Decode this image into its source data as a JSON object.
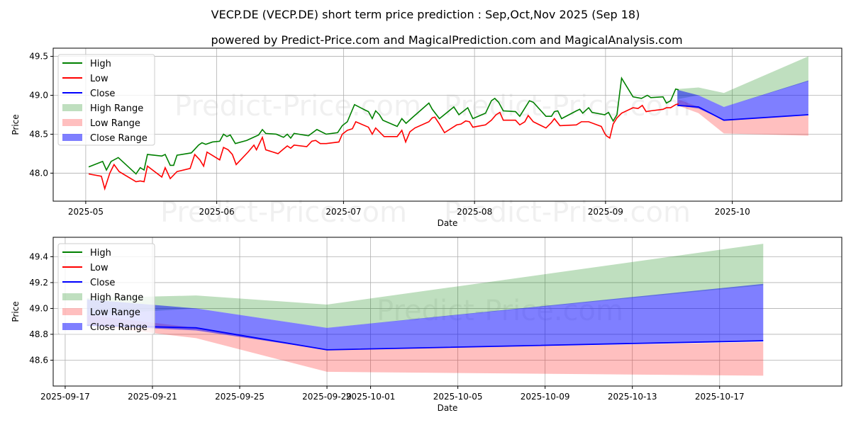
{
  "title": "VECP.DE (VECP.DE) short term price prediction : Sep,Oct,Nov 2025 (Sep 18)",
  "subtitle": "powered by Predict-Price.com and MagicalPrediction.com and MagicalAnalysis.com",
  "watermark": "Predict-Price.com",
  "colors": {
    "high": "#008000",
    "low": "#ff0000",
    "close": "#0000ff",
    "high_range": "#b2dab2",
    "low_range": "#ffb2b2",
    "close_range": "#7f7fff",
    "grid": "#b0b0b0"
  },
  "chart_data": [
    {
      "type": "line",
      "name": "history",
      "day_origin": "2025-05-01",
      "xlabel": "Date",
      "ylabel": "Price",
      "xlim_days": [
        -7.7,
        178.9
      ],
      "ylim": [
        47.64,
        49.605
      ],
      "grid": true,
      "legend": "top-left",
      "legend_entries": [
        "High",
        "Low",
        "Close",
        "High Range",
        "Low Range",
        "Close Range"
      ],
      "xticks": [
        {
          "day": 0,
          "label": "2025-05"
        },
        {
          "day": 31,
          "label": "2025-06"
        },
        {
          "day": 61,
          "label": "2025-07"
        },
        {
          "day": 92,
          "label": "2025-08"
        },
        {
          "day": 123,
          "label": "2025-09"
        },
        {
          "day": 153,
          "label": "2025-10"
        }
      ],
      "yticks": [
        {
          "v": 48.0,
          "label": "48.0"
        },
        {
          "v": 48.5,
          "label": "48.5"
        },
        {
          "v": 49.0,
          "label": "49.0"
        },
        {
          "v": 49.5,
          "label": "49.5"
        }
      ],
      "high": [
        [
          0.7,
          48.08
        ],
        [
          4.0,
          48.15
        ],
        [
          4.9,
          48.04
        ],
        [
          6.0,
          48.15
        ],
        [
          7.7,
          48.2
        ],
        [
          11.9,
          47.99
        ],
        [
          12.9,
          48.07
        ],
        [
          13.8,
          48.04
        ],
        [
          14.6,
          48.24
        ],
        [
          18.0,
          48.22
        ],
        [
          18.8,
          48.24
        ],
        [
          20.0,
          48.1
        ],
        [
          20.8,
          48.1
        ],
        [
          21.6,
          48.23
        ],
        [
          25.0,
          48.26
        ],
        [
          26.7,
          48.36
        ],
        [
          27.5,
          48.39
        ],
        [
          28.4,
          48.37
        ],
        [
          30.0,
          48.4
        ],
        [
          31.7,
          48.41
        ],
        [
          32.6,
          48.5
        ],
        [
          33.4,
          48.47
        ],
        [
          34.2,
          48.49
        ],
        [
          35.4,
          48.38
        ],
        [
          38.1,
          48.42
        ],
        [
          40.1,
          48.47
        ],
        [
          40.9,
          48.49
        ],
        [
          41.8,
          48.56
        ],
        [
          42.6,
          48.51
        ],
        [
          45.1,
          48.5
        ],
        [
          46.8,
          48.46
        ],
        [
          47.7,
          48.5
        ],
        [
          48.5,
          48.45
        ],
        [
          49.3,
          48.51
        ],
        [
          52.7,
          48.48
        ],
        [
          54.7,
          48.56
        ],
        [
          56.9,
          48.5
        ],
        [
          59.6,
          48.52
        ],
        [
          60.7,
          48.61
        ],
        [
          61.9,
          48.66
        ],
        [
          63.6,
          48.88
        ],
        [
          66.1,
          48.81
        ],
        [
          66.9,
          48.79
        ],
        [
          67.8,
          48.7
        ],
        [
          68.6,
          48.8
        ],
        [
          69.5,
          48.75
        ],
        [
          70.3,
          48.68
        ],
        [
          73.7,
          48.6
        ],
        [
          74.8,
          48.7
        ],
        [
          75.8,
          48.64
        ],
        [
          77.0,
          48.7
        ],
        [
          81.2,
          48.9
        ],
        [
          82.0,
          48.82
        ],
        [
          83.7,
          48.7
        ],
        [
          87.1,
          48.85
        ],
        [
          88.3,
          48.75
        ],
        [
          90.4,
          48.84
        ],
        [
          91.6,
          48.7
        ],
        [
          94.6,
          48.77
        ],
        [
          96.0,
          48.93
        ],
        [
          96.8,
          48.96
        ],
        [
          97.7,
          48.91
        ],
        [
          98.8,
          48.8
        ],
        [
          101.7,
          48.79
        ],
        [
          102.7,
          48.73
        ],
        [
          105.0,
          48.93
        ],
        [
          105.9,
          48.91
        ],
        [
          108.9,
          48.73
        ],
        [
          110.2,
          48.73
        ],
        [
          110.9,
          48.79
        ],
        [
          111.7,
          48.8
        ],
        [
          112.6,
          48.7
        ],
        [
          116.1,
          48.8
        ],
        [
          116.9,
          48.82
        ],
        [
          117.6,
          48.77
        ],
        [
          119.0,
          48.84
        ],
        [
          119.8,
          48.78
        ],
        [
          122.8,
          48.75
        ],
        [
          123.7,
          48.78
        ],
        [
          124.8,
          48.67
        ],
        [
          125.7,
          48.75
        ],
        [
          126.8,
          49.22
        ],
        [
          129.5,
          48.98
        ],
        [
          131.5,
          48.96
        ],
        [
          132.9,
          49.0
        ],
        [
          133.7,
          48.97
        ],
        [
          136.6,
          48.98
        ],
        [
          137.4,
          48.9
        ],
        [
          138.4,
          48.93
        ],
        [
          139.6,
          49.08
        ],
        [
          140.3,
          49.07
        ]
      ],
      "low": [
        [
          0.7,
          47.99
        ],
        [
          3.7,
          47.96
        ],
        [
          4.5,
          47.8
        ],
        [
          5.7,
          48.0
        ],
        [
          6.7,
          48.11
        ],
        [
          7.9,
          48.02
        ],
        [
          11.9,
          47.89
        ],
        [
          12.9,
          47.9
        ],
        [
          13.8,
          47.89
        ],
        [
          14.6,
          48.09
        ],
        [
          18.0,
          47.95
        ],
        [
          18.8,
          48.07
        ],
        [
          20.0,
          47.93
        ],
        [
          21.6,
          48.02
        ],
        [
          24.7,
          48.06
        ],
        [
          25.8,
          48.24
        ],
        [
          27.0,
          48.17
        ],
        [
          27.9,
          48.09
        ],
        [
          28.7,
          48.27
        ],
        [
          31.7,
          48.17
        ],
        [
          32.6,
          48.33
        ],
        [
          33.7,
          48.3
        ],
        [
          34.7,
          48.24
        ],
        [
          35.6,
          48.11
        ],
        [
          38.4,
          48.27
        ],
        [
          39.8,
          48.36
        ],
        [
          40.4,
          48.3
        ],
        [
          41.8,
          48.46
        ],
        [
          42.6,
          48.3
        ],
        [
          45.5,
          48.25
        ],
        [
          46.8,
          48.31
        ],
        [
          47.7,
          48.35
        ],
        [
          48.5,
          48.32
        ],
        [
          49.3,
          48.36
        ],
        [
          52.3,
          48.34
        ],
        [
          53.5,
          48.41
        ],
        [
          54.4,
          48.42
        ],
        [
          55.5,
          48.38
        ],
        [
          56.9,
          48.38
        ],
        [
          59.9,
          48.4
        ],
        [
          60.7,
          48.5
        ],
        [
          61.9,
          48.55
        ],
        [
          63.1,
          48.57
        ],
        [
          63.9,
          48.66
        ],
        [
          66.9,
          48.59
        ],
        [
          67.8,
          48.5
        ],
        [
          68.6,
          48.58
        ],
        [
          70.6,
          48.47
        ],
        [
          73.7,
          48.47
        ],
        [
          74.8,
          48.55
        ],
        [
          75.7,
          48.4
        ],
        [
          76.7,
          48.53
        ],
        [
          77.9,
          48.58
        ],
        [
          81.2,
          48.66
        ],
        [
          82.0,
          48.71
        ],
        [
          82.6,
          48.72
        ],
        [
          83.7,
          48.63
        ],
        [
          84.9,
          48.52
        ],
        [
          87.8,
          48.62
        ],
        [
          88.8,
          48.63
        ],
        [
          89.9,
          48.67
        ],
        [
          90.8,
          48.66
        ],
        [
          91.6,
          48.59
        ],
        [
          94.6,
          48.62
        ],
        [
          96.0,
          48.68
        ],
        [
          97.1,
          48.75
        ],
        [
          98.0,
          48.78
        ],
        [
          98.8,
          48.68
        ],
        [
          101.7,
          48.68
        ],
        [
          102.7,
          48.62
        ],
        [
          103.9,
          48.66
        ],
        [
          104.7,
          48.74
        ],
        [
          105.9,
          48.66
        ],
        [
          108.9,
          48.58
        ],
        [
          110.2,
          48.65
        ],
        [
          110.9,
          48.7
        ],
        [
          112.2,
          48.61
        ],
        [
          116.1,
          48.62
        ],
        [
          117.3,
          48.66
        ],
        [
          119.0,
          48.66
        ],
        [
          122.0,
          48.6
        ],
        [
          122.8,
          48.51
        ],
        [
          123.2,
          48.48
        ],
        [
          124.0,
          48.45
        ],
        [
          124.8,
          48.63
        ],
        [
          125.7,
          48.71
        ],
        [
          126.8,
          48.77
        ],
        [
          129.5,
          48.84
        ],
        [
          130.7,
          48.83
        ],
        [
          131.7,
          48.87
        ],
        [
          132.6,
          48.79
        ],
        [
          133.7,
          48.8
        ],
        [
          136.6,
          48.82
        ],
        [
          137.4,
          48.84
        ],
        [
          138.4,
          48.84
        ],
        [
          139.6,
          48.88
        ],
        [
          140.3,
          48.89
        ]
      ]
    },
    {
      "type": "area",
      "name": "forecast",
      "day_origin": "2025-05-01",
      "xlabel": "Date",
      "ylabel": "Price",
      "xlim_days": [
        138.45,
        174.6
      ],
      "ylim": [
        48.4,
        49.55
      ],
      "grid": true,
      "legend": "top-left",
      "legend_entries": [
        "High",
        "Low",
        "Close",
        "High Range",
        "Low Range",
        "Close Range"
      ],
      "xticks": [
        {
          "day": 139,
          "label": "2025-09-17"
        },
        {
          "day": 143,
          "label": "2025-09-21"
        },
        {
          "day": 147,
          "label": "2025-09-25"
        },
        {
          "day": 151,
          "label": "2025-09-29"
        },
        {
          "day": 153,
          "label": "2025-10-01"
        },
        {
          "day": 157,
          "label": "2025-10-05"
        },
        {
          "day": 161,
          "label": "2025-10-09"
        },
        {
          "day": 165,
          "label": "2025-10-13"
        },
        {
          "day": 169,
          "label": "2025-10-17"
        }
      ],
      "yticks": [
        {
          "v": 48.6,
          "label": "48.6"
        },
        {
          "v": 48.8,
          "label": "48.8"
        },
        {
          "v": 49.0,
          "label": "49.0"
        },
        {
          "v": 49.2,
          "label": "49.2"
        },
        {
          "v": 49.4,
          "label": "49.4"
        }
      ],
      "days": [
        140,
        145,
        151,
        171
      ],
      "close": [
        48.87,
        48.85,
        48.68,
        48.75
      ],
      "close_range": {
        "upper": [
          49.07,
          49.0,
          48.85,
          49.19
        ],
        "lower": [
          48.87,
          48.83,
          48.68,
          48.75
        ]
      },
      "high_range": {
        "upper": [
          49.08,
          49.1,
          49.03,
          49.5
        ],
        "lower": [
          48.95,
          49.0,
          48.85,
          49.18
        ]
      },
      "low_range": {
        "upper": [
          48.95,
          48.85,
          48.68,
          48.74
        ],
        "lower": [
          48.87,
          48.77,
          48.51,
          48.48
        ]
      }
    }
  ]
}
